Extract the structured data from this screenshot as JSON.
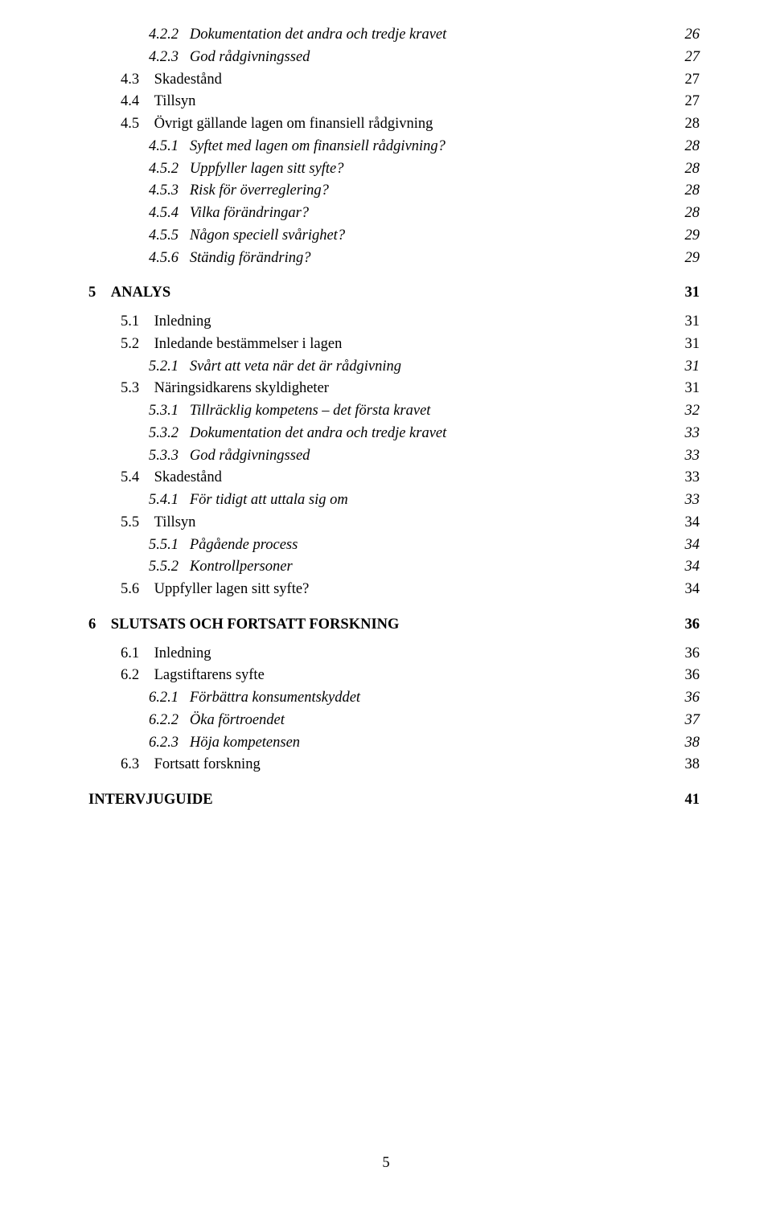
{
  "page_number": "5",
  "toc": [
    {
      "level": 2,
      "number": "4.2.2",
      "title": "Dokumentation det andra och tredje kravet",
      "page": "26",
      "italic": true
    },
    {
      "level": 2,
      "number": "4.2.3",
      "title": "God rådgivningssed",
      "page": "27",
      "italic": true
    },
    {
      "level": 1,
      "number": "4.3",
      "title": "Skadestånd",
      "page": "27",
      "smallcaps": true
    },
    {
      "level": 1,
      "number": "4.4",
      "title": "Tillsyn",
      "page": "27",
      "smallcaps": true
    },
    {
      "level": 1,
      "number": "4.5",
      "title": "Övrigt gällande lagen om finansiell rådgivning",
      "page": "28",
      "smallcaps": true
    },
    {
      "level": 2,
      "number": "4.5.1",
      "title": "Syftet med lagen om finansiell rådgivning?",
      "page": "28",
      "italic": true
    },
    {
      "level": 2,
      "number": "4.5.2",
      "title": "Uppfyller lagen sitt syfte?",
      "page": "28",
      "italic": true
    },
    {
      "level": 2,
      "number": "4.5.3",
      "title": "Risk för överreglering?",
      "page": "28",
      "italic": true
    },
    {
      "level": 2,
      "number": "4.5.4",
      "title": "Vilka förändringar?",
      "page": "28",
      "italic": true
    },
    {
      "level": 2,
      "number": "4.5.5",
      "title": "Någon speciell svårighet?",
      "page": "29",
      "italic": true
    },
    {
      "level": 2,
      "number": "4.5.6",
      "title": "Ständig förändring?",
      "page": "29",
      "italic": true
    },
    {
      "level": 0,
      "number": "5",
      "title": "ANALYS",
      "page": "31",
      "bold": true
    },
    {
      "level": 1,
      "number": "5.1",
      "title": "Inledning",
      "page": "31",
      "smallcaps": true
    },
    {
      "level": 1,
      "number": "5.2",
      "title": "Inledande bestämmelser i lagen",
      "page": "31",
      "smallcaps": true
    },
    {
      "level": 2,
      "number": "5.2.1",
      "title": "Svårt att veta när det är rådgivning",
      "page": "31",
      "italic": true
    },
    {
      "level": 1,
      "number": "5.3",
      "title": "Näringsidkarens skyldigheter",
      "page": "31",
      "smallcaps": true
    },
    {
      "level": 2,
      "number": "5.3.1",
      "title": "Tillräcklig kompetens – det första kravet",
      "page": "32",
      "italic": true
    },
    {
      "level": 2,
      "number": "5.3.2",
      "title": "Dokumentation det andra och tredje kravet",
      "page": "33",
      "italic": true
    },
    {
      "level": 2,
      "number": "5.3.3",
      "title": "God rådgivningssed",
      "page": "33",
      "italic": true
    },
    {
      "level": 1,
      "number": "5.4",
      "title": "Skadestånd",
      "page": "33",
      "smallcaps": true
    },
    {
      "level": 2,
      "number": "5.4.1",
      "title": "För tidigt att uttala sig om",
      "page": "33",
      "italic": true
    },
    {
      "level": 1,
      "number": "5.5",
      "title": "Tillsyn",
      "page": "34",
      "smallcaps": true
    },
    {
      "level": 2,
      "number": "5.5.1",
      "title": "Pågående process",
      "page": "34",
      "italic": true
    },
    {
      "level": 2,
      "number": "5.5.2",
      "title": "Kontrollpersoner",
      "page": "34",
      "italic": true
    },
    {
      "level": 1,
      "number": "5.6",
      "title": "Uppfyller lagen sitt syfte?",
      "page": "34",
      "smallcaps": true
    },
    {
      "level": 0,
      "number": "6",
      "title": "SLUTSATS OCH FORTSATT FORSKNING",
      "page": "36",
      "bold": true
    },
    {
      "level": 1,
      "number": "6.1",
      "title": "Inledning",
      "page": "36",
      "smallcaps": true
    },
    {
      "level": 1,
      "number": "6.2",
      "title": "Lagstiftarens syfte",
      "page": "36",
      "smallcaps": true
    },
    {
      "level": 2,
      "number": "6.2.1",
      "title": "Förbättra konsumentskyddet",
      "page": "36",
      "italic": true
    },
    {
      "level": 2,
      "number": "6.2.2",
      "title": "Öka förtroendet",
      "page": "37",
      "italic": true
    },
    {
      "level": 2,
      "number": "6.2.3",
      "title": "Höja kompetensen",
      "page": "38",
      "italic": true
    },
    {
      "level": 1,
      "number": "6.3",
      "title": "Fortsatt forskning",
      "page": "38",
      "smallcaps": true
    },
    {
      "level": 0,
      "number": "",
      "title": "INTERVJUGUIDE",
      "page": "41",
      "bold": true
    }
  ]
}
